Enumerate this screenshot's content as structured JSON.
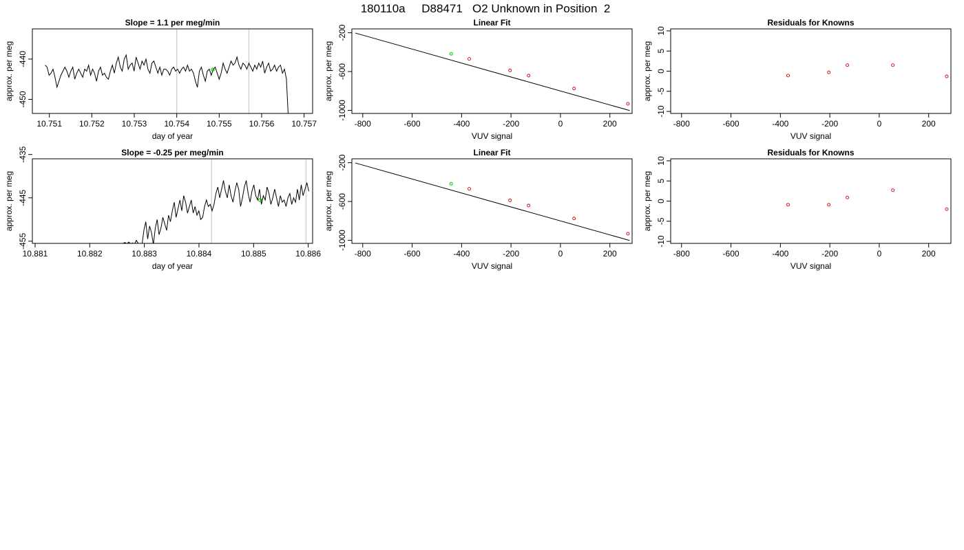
{
  "header": {
    "run_id": "180110a",
    "tank_id": "D88471",
    "description": "O2 Unknown in Position  2"
  },
  "colors": {
    "trace": "#000000",
    "marker_vline": "#c8c8c8",
    "unknown_point": "#00cc00",
    "known_point": "#cc0000"
  },
  "chart_data": [
    {
      "id": "timeseries-1",
      "type": "line",
      "title": "Slope =  1.1  per meg/min",
      "xlabel": "day of year",
      "ylabel": "approx. per meg",
      "xlim": [
        10.7506,
        10.7572
      ],
      "ylim": [
        -453.5,
        -432.5
      ],
      "xticks": [
        10.751,
        10.752,
        10.753,
        10.754,
        10.755,
        10.756,
        10.757
      ],
      "xtick_labels": [
        "10.751",
        "10.752",
        "10.753",
        "10.754",
        "10.755",
        "10.756",
        "10.757"
      ],
      "yticks": [
        -440,
        -450
      ],
      "ytick_labels": [
        "-440",
        "-450"
      ],
      "x_start": 10.7509,
      "x_end": 10.75663,
      "y": [
        -441.5,
        -442.0,
        -444.0,
        -443.5,
        -442.5,
        -444.5,
        -447.0,
        -445.5,
        -444.0,
        -443.0,
        -442.0,
        -443.0,
        -444.5,
        -443.0,
        -442.0,
        -445.0,
        -443.5,
        -442.5,
        -443.5,
        -444.5,
        -442.5,
        -443.0,
        -441.5,
        -444.0,
        -442.5,
        -443.5,
        -445.5,
        -443.0,
        -442.0,
        -444.0,
        -443.5,
        -444.5,
        -445.0,
        -443.0,
        -441.5,
        -443.5,
        -441.0,
        -439.5,
        -442.0,
        -443.0,
        -440.0,
        -439.0,
        -442.5,
        -441.5,
        -441.0,
        -443.0,
        -439.5,
        -441.0,
        -442.5,
        -440.5,
        -441.5,
        -440.0,
        -442.5,
        -443.5,
        -441.0,
        -440.5,
        -442.0,
        -443.5,
        -442.0,
        -444.0,
        -442.5,
        -442.5,
        -443.0,
        -444.0,
        -442.5,
        -442.0,
        -443.0,
        -442.5,
        -443.5,
        -442.5,
        -442.0,
        -443.0,
        -441.5,
        -443.0,
        -442.5,
        -443.5,
        -445.5,
        -447.0,
        -443.0,
        -442.0,
        -444.0,
        -445.5,
        -443.0,
        -442.5,
        -444.0,
        -442.5,
        -442.0,
        -443.5,
        -445.0,
        -443.5,
        -441.0,
        -442.5,
        -443.5,
        -442.0,
        -440.5,
        -441.5,
        -441.0,
        -439.5,
        -441.5,
        -442.5,
        -441.0,
        -441.5,
        -442.5,
        -441.0,
        -442.0,
        -443.0,
        -441.5,
        -442.5,
        -441.0,
        -442.0,
        -440.5,
        -443.5,
        -442.0,
        -441.0,
        -443.0,
        -442.5,
        -441.5,
        -443.0,
        -442.0,
        -441.5,
        -443.5,
        -442.5,
        -445.0,
        -455.0
      ],
      "vlines": [
        10.754,
        10.7557
      ],
      "highlight": {
        "x": 10.75485,
        "y": -442.6
      },
      "series": []
    },
    {
      "id": "linear-fit-1",
      "type": "scatter",
      "title": "Linear Fit",
      "xlabel": "VUV signal",
      "ylabel": "approx. per meg",
      "xlim": [
        -844,
        290
      ],
      "ylim": [
        -1032,
        -160
      ],
      "xticks": [
        -800,
        -600,
        -400,
        -200,
        0,
        200
      ],
      "xtick_labels": [
        "-800",
        "-600",
        "-400",
        "-200",
        "0",
        "200"
      ],
      "yticks": [
        -200,
        -600,
        -1000
      ],
      "ytick_labels": [
        "-200",
        "-600",
        "-1000"
      ],
      "fit_line": {
        "x": [
          -830,
          280
        ],
        "y": [
          -203,
          -1002
        ]
      },
      "known_points": {
        "x": [
          -369,
          -204,
          -129,
          55,
          273
        ],
        "y": [
          -469,
          -588,
          -642,
          -775,
          -932
        ]
      },
      "unknown_point": {
        "x": -442,
        "y": -417
      },
      "series": []
    },
    {
      "id": "residuals-1",
      "type": "scatter",
      "title": "Residuals for Knowns",
      "xlabel": "VUV signal",
      "ylabel": "approx. per meg",
      "xlim": [
        -844,
        290
      ],
      "ylim": [
        -10.5,
        10.5
      ],
      "xticks": [
        -800,
        -600,
        -400,
        -200,
        0,
        200
      ],
      "xtick_labels": [
        "-800",
        "-600",
        "-400",
        "-200",
        "0",
        "200"
      ],
      "yticks": [
        10,
        5,
        0,
        -5,
        -10
      ],
      "ytick_labels": [
        "10",
        "5",
        "0",
        "-5",
        "-10"
      ],
      "points": {
        "x": [
          -369,
          -204,
          -129,
          55,
          273
        ],
        "y": [
          -1.1,
          -0.3,
          1.5,
          1.5,
          -1.3
        ]
      },
      "series": []
    },
    {
      "id": "timeseries-2",
      "type": "line",
      "title": "Slope =  -0.25  per meg/min",
      "xlabel": "day of year",
      "ylabel": "approx. per meg",
      "xlim": [
        10.88095,
        10.88608
      ],
      "ylim": [
        -455.5,
        -436.0
      ],
      "xticks": [
        10.881,
        10.882,
        10.883,
        10.884,
        10.885,
        10.886
      ],
      "xtick_labels": [
        "10.881",
        "10.882",
        "10.883",
        "10.884",
        "10.885",
        "10.886"
      ],
      "yticks": [
        -435,
        -445,
        -455
      ],
      "ytick_labels": [
        "-435",
        "-445",
        "-455"
      ],
      "x_start": 10.88261,
      "x_end": 10.88601,
      "y": [
        -455.5,
        -455.3,
        -455.6,
        -455.2,
        -455.6,
        -455.4,
        -455.7,
        -454.8,
        -455.5,
        -456.2,
        -455.8,
        -452.5,
        -450.5,
        -454.5,
        -451.5,
        -453.0,
        -455.8,
        -452.0,
        -450.0,
        -453.5,
        -452.0,
        -449.5,
        -451.0,
        -452.5,
        -449.0,
        -450.5,
        -448.0,
        -446.0,
        -449.5,
        -447.5,
        -445.5,
        -448.0,
        -444.5,
        -446.0,
        -448.5,
        -447.0,
        -445.5,
        -448.5,
        -447.0,
        -449.0,
        -448.0,
        -450.0,
        -449.5,
        -447.0,
        -445.5,
        -447.0,
        -446.5,
        -448.0,
        -446.5,
        -444.0,
        -442.5,
        -445.0,
        -443.0,
        -441.0,
        -443.5,
        -445.0,
        -442.0,
        -444.5,
        -446.0,
        -443.5,
        -441.5,
        -443.0,
        -447.0,
        -445.0,
        -442.5,
        -441.0,
        -444.0,
        -446.0,
        -443.5,
        -442.0,
        -444.5,
        -445.5,
        -443.0,
        -446.5,
        -444.5,
        -445.5,
        -442.5,
        -444.0,
        -446.5,
        -445.0,
        -443.0,
        -445.0,
        -447.0,
        -444.5,
        -446.0,
        -445.5,
        -447.0,
        -445.0,
        -444.0,
        -446.5,
        -445.0,
        -446.0,
        -443.0,
        -445.5,
        -442.0,
        -444.5,
        -443.0,
        -441.5,
        -443.5
      ],
      "vlines": [
        10.88423,
        10.88596
      ],
      "highlight": {
        "x": 10.88512,
        "y": -445.5
      },
      "series": []
    },
    {
      "id": "linear-fit-2",
      "type": "scatter",
      "title": "Linear Fit",
      "xlabel": "VUV signal",
      "ylabel": "approx. per meg",
      "xlim": [
        -844,
        290
      ],
      "ylim": [
        -1032,
        -160
      ],
      "xticks": [
        -800,
        -600,
        -400,
        -200,
        0,
        200
      ],
      "xtick_labels": [
        "-800",
        "-600",
        "-400",
        "-200",
        "0",
        "200"
      ],
      "yticks": [
        -200,
        -600,
        -1000
      ],
      "ytick_labels": [
        "-200",
        "-600",
        "-1000"
      ],
      "fit_line": {
        "x": [
          -830,
          280
        ],
        "y": [
          -203,
          -1002
        ]
      },
      "known_points": {
        "x": [
          -369,
          -204,
          -129,
          55,
          273
        ],
        "y": [
          -469,
          -588,
          -642,
          -775,
          -932
        ]
      },
      "unknown_point": {
        "x": -442,
        "y": -417
      },
      "series": []
    },
    {
      "id": "residuals-2",
      "type": "scatter",
      "title": "Residuals for Knowns",
      "xlabel": "VUV signal",
      "ylabel": "approx. per meg",
      "xlim": [
        -844,
        290
      ],
      "ylim": [
        -10.5,
        10.5
      ],
      "xticks": [
        -800,
        -600,
        -400,
        -200,
        0,
        200
      ],
      "xtick_labels": [
        "-800",
        "-600",
        "-400",
        "-200",
        "0",
        "200"
      ],
      "yticks": [
        10,
        5,
        0,
        -5,
        -10
      ],
      "ytick_labels": [
        "10",
        "5",
        "0",
        "-5",
        "-10"
      ],
      "points": {
        "x": [
          -369,
          -204,
          -129,
          55,
          273
        ],
        "y": [
          -0.9,
          -0.9,
          0.9,
          2.7,
          -2.0
        ]
      },
      "series": []
    }
  ]
}
